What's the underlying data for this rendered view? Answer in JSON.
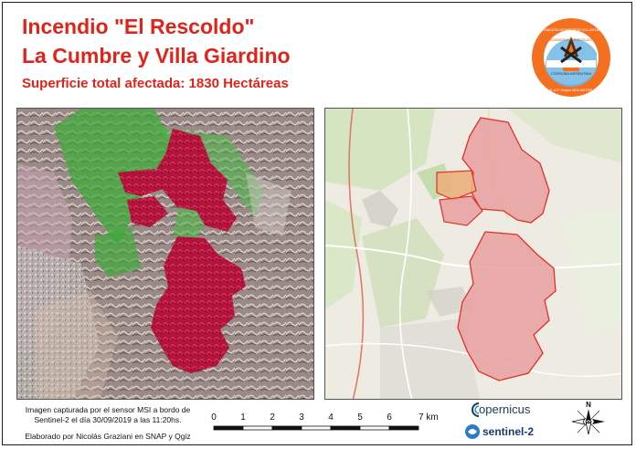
{
  "header": {
    "title_line1": "Incendio \"El Rescoldo\"",
    "title_line2": "La Cumbre y Villa Giardino",
    "subtitle": "Superficie total afectada: 1830 Hectáreas"
  },
  "logo": {
    "name": "bomberos-forestales-badge-icon",
    "ring_text_top": "FEDERACIÓN BOMBEROS VOLUNTARIOS",
    "center_text": "BOMBEROS FORESTALES",
    "lower_text": "CÓRDOBA ARGENTINA",
    "ring_text_bottom": "E.A.P. Grupo MOLUNTER",
    "colors": {
      "ring": "#f37021",
      "center": "#ffffff",
      "sky": "#6fb7e6"
    }
  },
  "maps": {
    "left": {
      "description_icon": "satellite-false-color-map",
      "burn_color": "#b3123a",
      "veg_color": "#3fa93a"
    },
    "right": {
      "description_icon": "street-basemap",
      "burn_fill": "#e8a0a0",
      "burn_stroke": "#e0302a"
    }
  },
  "footer": {
    "credit_line1": "Imagen capturada por el sensor MSI a bordo de",
    "credit_line2": "Sentinel-2 el día 30/09/2019 a las 11:20hs.",
    "credit_line3": "Elaborado por Nicolás Graziani en SNAP y Qgiz",
    "scale": {
      "labels": [
        "0",
        "1",
        "2",
        "3",
        "4",
        "5",
        "6",
        "7 km"
      ]
    },
    "copernicus_label": "opernicus",
    "sentinel_label": "sentinel-2"
  },
  "compass": {
    "name": "north-arrow-icon",
    "label": "N"
  }
}
